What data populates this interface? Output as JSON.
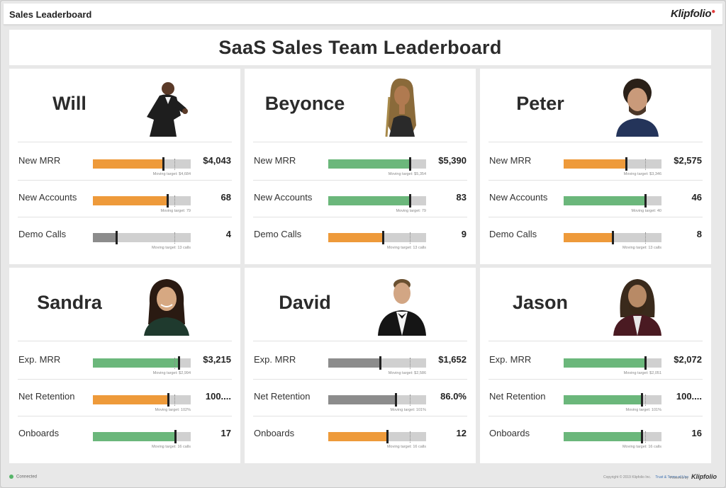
{
  "window": {
    "title": "Sales Leaderboard",
    "brand": "Klipfolio"
  },
  "dashboard": {
    "title": "SaaS Sales Team Leaderboard"
  },
  "colors": {
    "green": "#6bb77b",
    "orange": "#ee9a3a",
    "gray": "#8c8c8c",
    "track": "#d0d0d0"
  },
  "cards": [
    {
      "name": "Will",
      "metrics": [
        {
          "label": "New MRR",
          "value": "$4,043",
          "target_text": "Moving target: $4,684",
          "progress": 0.72,
          "target": 0.83,
          "color": "#ee9a3a"
        },
        {
          "label": "New Accounts",
          "value": "68",
          "target_text": "Moving target: 79",
          "progress": 0.76,
          "target": 0.83,
          "color": "#ee9a3a"
        },
        {
          "label": "Demo Calls",
          "value": "4",
          "target_text": "Moving target: 13 calls",
          "progress": 0.24,
          "target": 0.83,
          "color": "#8c8c8c"
        }
      ]
    },
    {
      "name": "Beyonce",
      "metrics": [
        {
          "label": "New MRR",
          "value": "$5,390",
          "target_text": "Moving target: $5,354",
          "progress": 0.83,
          "target": 0.83,
          "color": "#6bb77b"
        },
        {
          "label": "New Accounts",
          "value": "83",
          "target_text": "Moving target: 79",
          "progress": 0.83,
          "target": 0.83,
          "color": "#6bb77b"
        },
        {
          "label": "Demo Calls",
          "value": "9",
          "target_text": "Moving target: 13 calls",
          "progress": 0.56,
          "target": 0.83,
          "color": "#ee9a3a"
        }
      ]
    },
    {
      "name": "Peter",
      "metrics": [
        {
          "label": "New MRR",
          "value": "$2,575",
          "target_text": "Moving target: $3,346",
          "progress": 0.64,
          "target": 0.83,
          "color": "#ee9a3a"
        },
        {
          "label": "New Accounts",
          "value": "46",
          "target_text": "Moving target: 40",
          "progress": 0.83,
          "target": 0.83,
          "color": "#6bb77b"
        },
        {
          "label": "Demo Calls",
          "value": "8",
          "target_text": "Moving target: 13 calls",
          "progress": 0.5,
          "target": 0.83,
          "color": "#ee9a3a"
        }
      ]
    },
    {
      "name": "Sandra",
      "metrics": [
        {
          "label": "Exp. MRR",
          "value": "$3,215",
          "target_text": "Moving target: $2,994",
          "progress": 0.88,
          "target": 0.83,
          "color": "#6bb77b"
        },
        {
          "label": "Net Retention",
          "value": "100....",
          "target_text": "Moving target: 102%",
          "progress": 0.77,
          "target": 0.83,
          "color": "#ee9a3a"
        },
        {
          "label": "Onboards",
          "value": "17",
          "target_text": "Moving target: 16 calls",
          "progress": 0.84,
          "target": 0.83,
          "color": "#6bb77b"
        }
      ]
    },
    {
      "name": "David",
      "metrics": [
        {
          "label": "Exp. MRR",
          "value": "$1,652",
          "target_text": "Moving target: $2,586",
          "progress": 0.53,
          "target": 0.83,
          "color": "#8c8c8c"
        },
        {
          "label": "Net Retention",
          "value": "86.0%",
          "target_text": "Moving target: 101%",
          "progress": 0.69,
          "target": 0.83,
          "color": "#8c8c8c"
        },
        {
          "label": "Onboards",
          "value": "12",
          "target_text": "Moving target: 16 calls",
          "progress": 0.6,
          "target": 0.83,
          "color": "#ee9a3a"
        }
      ]
    },
    {
      "name": "Jason",
      "metrics": [
        {
          "label": "Exp. MRR",
          "value": "$2,072",
          "target_text": "Moving target: $2,051",
          "progress": 0.83,
          "target": 0.83,
          "color": "#6bb77b"
        },
        {
          "label": "Net Retention",
          "value": "100....",
          "target_text": "Moving target: 101%",
          "progress": 0.8,
          "target": 0.83,
          "color": "#6bb77b"
        },
        {
          "label": "Onboards",
          "value": "16",
          "target_text": "Moving target: 16 calls",
          "progress": 0.8,
          "target": 0.83,
          "color": "#6bb77b"
        }
      ]
    }
  ],
  "footer": {
    "status": "Connected",
    "copyright": "Copyright © 2019 Klipfolio Inc.",
    "terms": "Trust & Terms of Use",
    "powered_by": "Powered by",
    "powered_brand": "Klipfolio"
  }
}
